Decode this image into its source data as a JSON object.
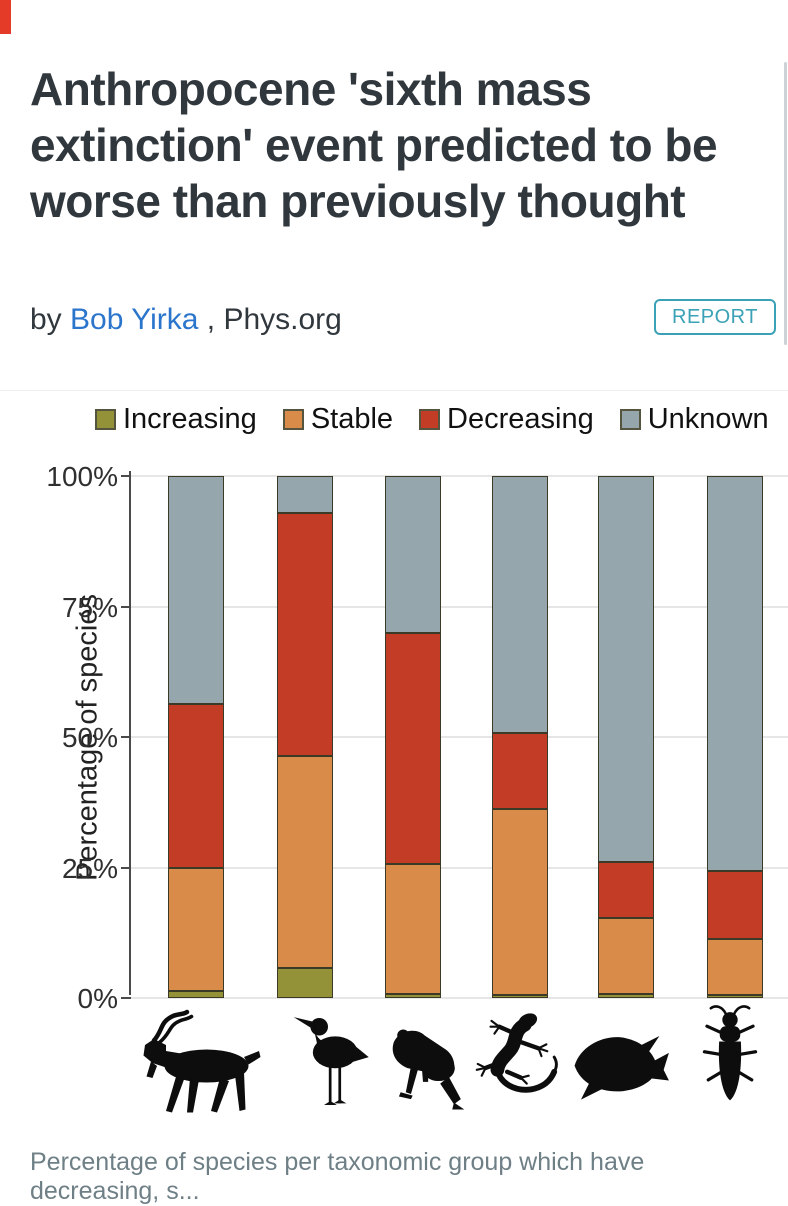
{
  "page": {
    "title": "Anthropocene 'sixth mass extinction' event predicted to be worse than previously thought",
    "byline_prefix": "by ",
    "author": "Bob Yirka",
    "byline_suffix": " , Phys.org",
    "report_button": "REPORT",
    "caption": "Percentage of species per taxonomic group which have decreasing, s..."
  },
  "colors": {
    "title_text": "#30373d",
    "author_link": "#2b76cc",
    "report_teal": "#3aa1b6",
    "caption_gray": "#6e7f86",
    "increasing": "#949238",
    "stable": "#d98c49",
    "decreasing": "#c33d26",
    "unknown": "#95a6ac",
    "segment_border": "#3a3a26",
    "gridline": "#e6e6e6",
    "corner_mark_red": "#e43b28"
  },
  "chart_data": {
    "type": "bar",
    "stacked": true,
    "title": "",
    "xlabel": "",
    "ylabel": "Percentage of species",
    "ylim": [
      0,
      100
    ],
    "yticks": [
      100,
      75,
      50,
      25,
      0
    ],
    "ytick_labels": [
      "100%",
      "75%",
      "50%",
      "25%",
      "0%"
    ],
    "grid": true,
    "legend_position": "top",
    "categories": [
      "Mammals",
      "Birds",
      "Amphibians",
      "Reptiles",
      "Fishes",
      "Insects"
    ],
    "category_icons": [
      "antelope-icon",
      "shorebird-icon",
      "frog-icon",
      "gecko-icon",
      "fish-icon",
      "beetle-icon"
    ],
    "legend": [
      {
        "label": "Increasing",
        "color": "#949238"
      },
      {
        "label": "Stable",
        "color": "#d98c49"
      },
      {
        "label": "Decreasing",
        "color": "#c33d26"
      },
      {
        "label": "Unknown",
        "color": "#95a6ac"
      }
    ],
    "series": [
      {
        "name": "Increasing",
        "values": [
          1.3,
          5.7,
          0.7,
          0.5,
          0.8,
          0.5
        ]
      },
      {
        "name": "Stable",
        "values": [
          23.6,
          40.7,
          25.0,
          35.7,
          14.5,
          10.8
        ]
      },
      {
        "name": "Decreasing",
        "values": [
          31.4,
          46.5,
          44.2,
          14.6,
          10.8,
          13.0
        ]
      },
      {
        "name": "Unknown",
        "values": [
          43.7,
          7.1,
          30.1,
          49.2,
          73.9,
          75.7
        ]
      }
    ]
  }
}
